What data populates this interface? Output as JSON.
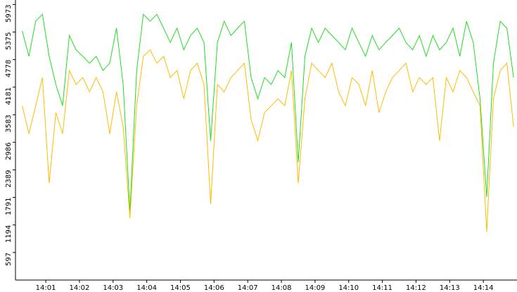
{
  "chart_data": {
    "type": "line",
    "x": [
      0.3,
      0.5,
      0.7,
      0.9,
      1.1,
      1.3,
      1.5,
      1.7,
      1.9,
      2.1,
      2.3,
      2.5,
      2.7,
      2.9,
      3.1,
      3.3,
      3.5,
      3.7,
      3.9,
      4.1,
      4.3,
      4.5,
      4.7,
      4.9,
      5.1,
      5.3,
      5.5,
      5.7,
      5.9,
      6.1,
      6.3,
      6.5,
      6.7,
      6.9,
      7.1,
      7.3,
      7.5,
      7.7,
      7.9,
      8.1,
      8.3,
      8.5,
      8.7,
      8.9,
      9.1,
      9.3,
      9.5,
      9.7,
      9.9,
      10.1,
      10.3,
      10.5,
      10.7,
      10.9,
      11.1,
      11.3,
      11.5,
      11.7,
      11.9,
      12.1,
      12.3,
      12.5,
      12.7,
      12.9,
      13.1,
      13.3,
      13.5,
      13.7,
      13.9,
      14.1,
      14.3,
      14.5,
      14.7,
      14.9
    ],
    "series": [
      {
        "color": "#22dd22",
        "values": [
          5400,
          4850,
          5610,
          5760,
          4850,
          4240,
          3780,
          5300,
          4990,
          4850,
          4700,
          4850,
          4540,
          4700,
          5460,
          4240,
          1490,
          4540,
          5760,
          5610,
          5760,
          5460,
          5150,
          5460,
          4990,
          5300,
          5460,
          5150,
          3020,
          5150,
          5610,
          5300,
          5460,
          5610,
          4390,
          3930,
          4390,
          4240,
          4540,
          4390,
          5150,
          2550,
          4850,
          5460,
          5150,
          5460,
          5300,
          5150,
          4990,
          5460,
          5150,
          4850,
          5300,
          4990,
          5150,
          5300,
          5460,
          5150,
          4990,
          5300,
          4850,
          5300,
          4990,
          5150,
          5460,
          4850,
          5610,
          5150,
          3930,
          1800,
          4700,
          5610,
          5460,
          4390
        ]
      },
      {
        "color": "#ffbb00",
        "values": [
          3780,
          3170,
          3780,
          4390,
          2100,
          3630,
          3170,
          4540,
          4240,
          4390,
          4080,
          4390,
          4080,
          3170,
          4080,
          3320,
          1340,
          3780,
          4850,
          4990,
          4700,
          4850,
          4390,
          4540,
          3930,
          4540,
          4700,
          4240,
          1650,
          4240,
          4080,
          4390,
          4540,
          4700,
          3480,
          3020,
          3630,
          3780,
          3930,
          3780,
          4540,
          2100,
          3930,
          4700,
          4540,
          4390,
          4700,
          4080,
          3780,
          4390,
          4240,
          3780,
          4540,
          3630,
          4080,
          4390,
          4540,
          4700,
          4080,
          4390,
          4240,
          4390,
          3020,
          4390,
          4080,
          4540,
          4390,
          4080,
          3780,
          1040,
          3930,
          4540,
          4700,
          3320
        ]
      }
    ],
    "xlim": [
      0.1,
      15.0
    ],
    "ylim": [
      0,
      6070
    ],
    "xticks": [
      {
        "value": 1,
        "label": "14:01"
      },
      {
        "value": 2,
        "label": "14:02"
      },
      {
        "value": 3,
        "label": "14:03"
      },
      {
        "value": 4,
        "label": "14:04"
      },
      {
        "value": 5,
        "label": "14:05"
      },
      {
        "value": 6,
        "label": "14:06"
      },
      {
        "value": 7,
        "label": "14:07"
      },
      {
        "value": 8,
        "label": "14:08"
      },
      {
        "value": 9,
        "label": "14:09"
      },
      {
        "value": 10,
        "label": "14:10"
      },
      {
        "value": 11,
        "label": "14:11"
      },
      {
        "value": 12,
        "label": "14:12"
      },
      {
        "value": 13,
        "label": "14:13"
      },
      {
        "value": 14,
        "label": "14:14"
      }
    ],
    "yticks": [
      597,
      1194,
      1791,
      2389,
      2986,
      3583,
      4181,
      4778,
      5375,
      5973
    ]
  }
}
